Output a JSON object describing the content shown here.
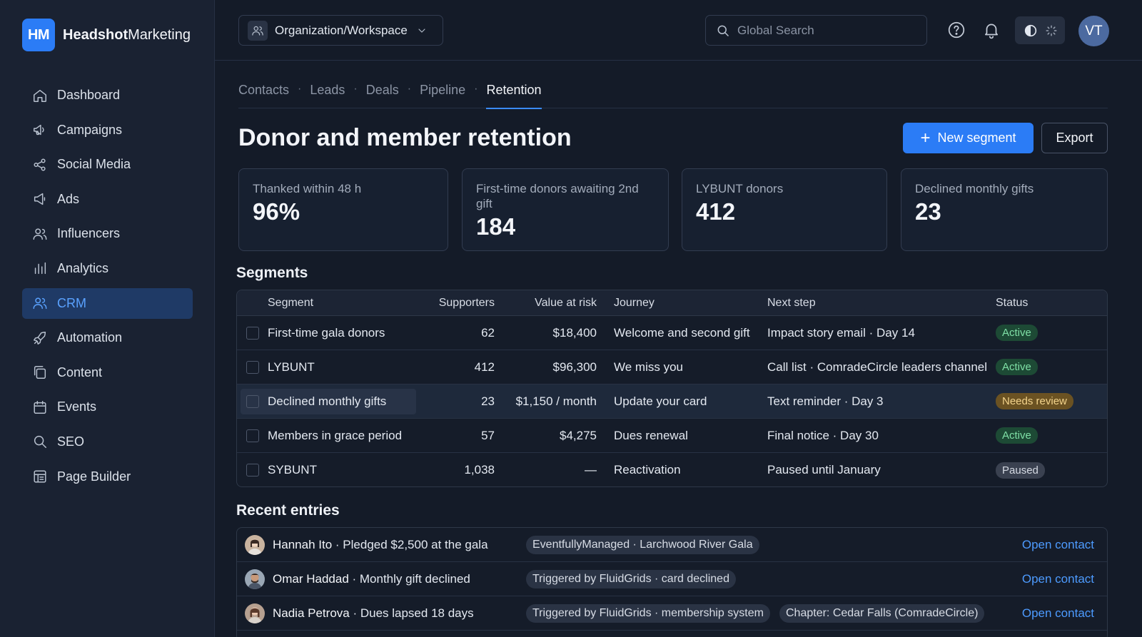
{
  "brand": {
    "badge": "HM",
    "name_bold": "Headshot",
    "name_rest": "Marketing"
  },
  "sidebar": {
    "items": [
      {
        "label": "Dashboard",
        "icon": "home-icon"
      },
      {
        "label": "Campaigns",
        "icon": "megaphone-icon"
      },
      {
        "label": "Social Media",
        "icon": "share-icon"
      },
      {
        "label": "Ads",
        "icon": "loudspeaker-icon"
      },
      {
        "label": "Influencers",
        "icon": "users-icon"
      },
      {
        "label": "Analytics",
        "icon": "bar-chart-icon"
      },
      {
        "label": "CRM",
        "icon": "crm-users-icon",
        "active": true
      },
      {
        "label": "Automation",
        "icon": "rocket-icon"
      },
      {
        "label": "Content",
        "icon": "copy-icon"
      },
      {
        "label": "Events",
        "icon": "calendar-icon"
      },
      {
        "label": "SEO",
        "icon": "search-icon"
      },
      {
        "label": "Page Builder",
        "icon": "layout-icon"
      }
    ]
  },
  "topbar": {
    "workspace": "Organization/Workspace",
    "search_placeholder": "Global Search",
    "avatar_initials": "VT"
  },
  "tabs": [
    "Contacts",
    "Leads",
    "Deals",
    "Pipeline",
    "Retention"
  ],
  "active_tab": "Retention",
  "page": {
    "title": "Donor and member retention",
    "new_segment": "New segment",
    "export": "Export"
  },
  "kpis": [
    {
      "label": "Thanked within 48 h",
      "value": "96%"
    },
    {
      "label": "First-time donors awaiting 2nd gift",
      "value": "184"
    },
    {
      "label": "LYBUNT donors",
      "value": "412"
    },
    {
      "label": "Declined monthly gifts",
      "value": "23"
    }
  ],
  "segments": {
    "title": "Segments",
    "columns": [
      "Segment",
      "Supporters",
      "Value at risk",
      "Journey",
      "Next step",
      "Status"
    ],
    "rows": [
      {
        "segment": "First-time gala donors",
        "supporters": "62",
        "value": "$18,400",
        "journey": "Welcome and second gift",
        "next": "Impact story email · Day 14",
        "status": "Active"
      },
      {
        "segment": "LYBUNT",
        "supporters": "412",
        "value": "$96,300",
        "journey": "We miss you",
        "next": "Call list · ComradeCircle leaders channel",
        "status": "Active"
      },
      {
        "segment": "Declined monthly gifts",
        "supporters": "23",
        "value": "$1,150 / month",
        "journey": "Update your card",
        "next": "Text reminder · Day 3",
        "status": "Needs review"
      },
      {
        "segment": "Members in grace period",
        "supporters": "57",
        "value": "$4,275",
        "journey": "Dues renewal",
        "next": "Final notice · Day 30",
        "status": "Active"
      },
      {
        "segment": "SYBUNT",
        "supporters": "1,038",
        "value": "—",
        "journey": "Reactivation",
        "next": "Paused until January",
        "status": "Paused"
      }
    ]
  },
  "entries": {
    "title": "Recent entries",
    "link_label": "Open contact",
    "rows": [
      {
        "name": "Hannah Ito",
        "detail": " · Pledged $2,500 at the gala",
        "chips": [
          "EventfullyManaged · Larchwood River Gala"
        ]
      },
      {
        "name": "Omar Haddad",
        "detail": " · Monthly gift declined",
        "chips": [
          "Triggered by FluidGrids · card declined"
        ]
      },
      {
        "name": "Nadia Petrova",
        "detail": " · Dues lapsed 18 days",
        "chips": [
          "Triggered by FluidGrids · membership system",
          "Chapter: Cedar Falls (ComradeCircle)"
        ]
      }
    ]
  },
  "colors": {
    "accent": "#2b7cf6",
    "active_badge": "#1d4a35",
    "review_badge": "#6b5222",
    "paused_badge": "#3a4150"
  }
}
